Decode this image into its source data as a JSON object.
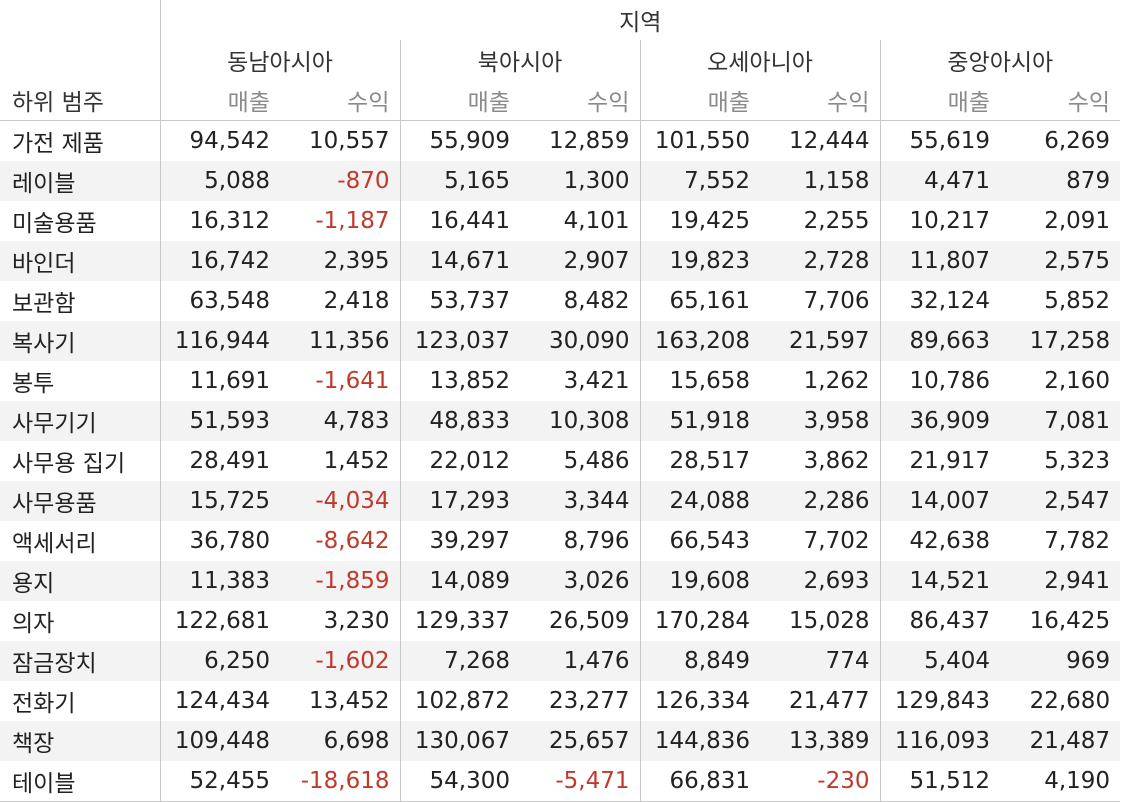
{
  "chart_data": {
    "type": "table",
    "column_group_title": "지역",
    "row_header": "하위 범주",
    "regions": [
      "동남아시아",
      "북아시아",
      "오세아니아",
      "중앙아시아"
    ],
    "measures": [
      "매출",
      "수익"
    ],
    "rows": [
      {
        "category": "가전 제품",
        "values": [
          [
            94542,
            10557
          ],
          [
            55909,
            12859
          ],
          [
            101550,
            12444
          ],
          [
            55619,
            6269
          ]
        ]
      },
      {
        "category": "레이블",
        "values": [
          [
            5088,
            -870
          ],
          [
            5165,
            1300
          ],
          [
            7552,
            1158
          ],
          [
            4471,
            879
          ]
        ]
      },
      {
        "category": "미술용품",
        "values": [
          [
            16312,
            -1187
          ],
          [
            16441,
            4101
          ],
          [
            19425,
            2255
          ],
          [
            10217,
            2091
          ]
        ]
      },
      {
        "category": "바인더",
        "values": [
          [
            16742,
            2395
          ],
          [
            14671,
            2907
          ],
          [
            19823,
            2728
          ],
          [
            11807,
            2575
          ]
        ]
      },
      {
        "category": "보관함",
        "values": [
          [
            63548,
            2418
          ],
          [
            53737,
            8482
          ],
          [
            65161,
            7706
          ],
          [
            32124,
            5852
          ]
        ]
      },
      {
        "category": "복사기",
        "values": [
          [
            116944,
            11356
          ],
          [
            123037,
            30090
          ],
          [
            163208,
            21597
          ],
          [
            89663,
            17258
          ]
        ]
      },
      {
        "category": "봉투",
        "values": [
          [
            11691,
            -1641
          ],
          [
            13852,
            3421
          ],
          [
            15658,
            1262
          ],
          [
            10786,
            2160
          ]
        ]
      },
      {
        "category": "사무기기",
        "values": [
          [
            51593,
            4783
          ],
          [
            48833,
            10308
          ],
          [
            51918,
            3958
          ],
          [
            36909,
            7081
          ]
        ]
      },
      {
        "category": "사무용 집기",
        "values": [
          [
            28491,
            1452
          ],
          [
            22012,
            5486
          ],
          [
            28517,
            3862
          ],
          [
            21917,
            5323
          ]
        ]
      },
      {
        "category": "사무용품",
        "values": [
          [
            15725,
            -4034
          ],
          [
            17293,
            3344
          ],
          [
            24088,
            2286
          ],
          [
            14007,
            2547
          ]
        ]
      },
      {
        "category": "액세서리",
        "values": [
          [
            36780,
            -8642
          ],
          [
            39297,
            8796
          ],
          [
            66543,
            7702
          ],
          [
            42638,
            7782
          ]
        ]
      },
      {
        "category": "용지",
        "values": [
          [
            11383,
            -1859
          ],
          [
            14089,
            3026
          ],
          [
            19608,
            2693
          ],
          [
            14521,
            2941
          ]
        ]
      },
      {
        "category": "의자",
        "values": [
          [
            122681,
            3230
          ],
          [
            129337,
            26509
          ],
          [
            170284,
            15028
          ],
          [
            86437,
            16425
          ]
        ]
      },
      {
        "category": "잠금장치",
        "values": [
          [
            6250,
            -1602
          ],
          [
            7268,
            1476
          ],
          [
            8849,
            774
          ],
          [
            5404,
            969
          ]
        ]
      },
      {
        "category": "전화기",
        "values": [
          [
            124434,
            13452
          ],
          [
            102872,
            23277
          ],
          [
            126334,
            21477
          ],
          [
            129843,
            22680
          ]
        ]
      },
      {
        "category": "책장",
        "values": [
          [
            109448,
            6698
          ],
          [
            130067,
            25657
          ],
          [
            144836,
            13389
          ],
          [
            116093,
            21487
          ]
        ]
      },
      {
        "category": "테이블",
        "values": [
          [
            52455,
            -18618
          ],
          [
            54300,
            -5471
          ],
          [
            66831,
            -230
          ],
          [
            51512,
            4190
          ]
        ]
      }
    ],
    "colors": {
      "text": "#222222",
      "negative": "#c0392b",
      "measure_header": "#8a8a8a",
      "band": "#f3f3f3",
      "gridline": "#c8c8c8"
    }
  }
}
